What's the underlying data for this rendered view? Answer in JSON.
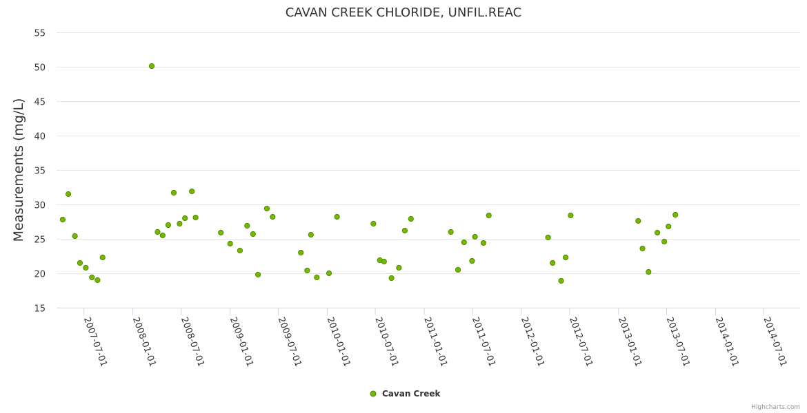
{
  "chart_data": {
    "type": "scatter",
    "title": "CAVAN CREEK CHLORIDE, UNFIL.REAC",
    "ylabel": "Measurements (mg/L)",
    "xlabel": "",
    "ylim": [
      15,
      55
    ],
    "yticks": [
      15,
      20,
      25,
      30,
      35,
      40,
      45,
      50,
      55
    ],
    "xlim": [
      "2007-03-20",
      "2014-11-15"
    ],
    "xticks": [
      "2007-07-01",
      "2008-01-01",
      "2008-07-01",
      "2009-01-01",
      "2009-07-01",
      "2010-01-01",
      "2010-07-01",
      "2011-01-01",
      "2011-07-01",
      "2012-01-01",
      "2012-07-01",
      "2013-01-01",
      "2013-07-01",
      "2014-01-01",
      "2014-07-01"
    ],
    "grid": true,
    "legend": "bottom-center",
    "marker_color": "#76b700",
    "marker_edge": "#4a8a00",
    "series": [
      {
        "name": "Cavan Creek",
        "points": [
          [
            "2007-04-12",
            27.8
          ],
          [
            "2007-05-03",
            31.5
          ],
          [
            "2007-05-28",
            25.4
          ],
          [
            "2007-06-16",
            21.5
          ],
          [
            "2007-07-08",
            20.8
          ],
          [
            "2007-07-31",
            19.4
          ],
          [
            "2007-08-21",
            19.0
          ],
          [
            "2007-09-09",
            22.3
          ],
          [
            "2008-03-12",
            50.1
          ],
          [
            "2008-04-03",
            26.0
          ],
          [
            "2008-04-22",
            25.5
          ],
          [
            "2008-05-13",
            27.0
          ],
          [
            "2008-06-03",
            31.7
          ],
          [
            "2008-06-25",
            27.2
          ],
          [
            "2008-07-15",
            28.0
          ],
          [
            "2008-08-10",
            31.9
          ],
          [
            "2008-08-24",
            28.1
          ],
          [
            "2008-11-27",
            25.9
          ],
          [
            "2009-01-01",
            24.3
          ],
          [
            "2009-02-07",
            23.3
          ],
          [
            "2009-03-06",
            26.9
          ],
          [
            "2009-03-28",
            25.7
          ],
          [
            "2009-04-16",
            19.8
          ],
          [
            "2009-05-19",
            29.4
          ],
          [
            "2009-06-10",
            28.2
          ],
          [
            "2009-09-24",
            23.0
          ],
          [
            "2009-10-18",
            20.4
          ],
          [
            "2009-11-01",
            25.6
          ],
          [
            "2009-11-23",
            19.4
          ],
          [
            "2010-01-08",
            20.0
          ],
          [
            "2010-02-07",
            28.2
          ],
          [
            "2010-06-24",
            27.2
          ],
          [
            "2010-07-18",
            21.9
          ],
          [
            "2010-08-03",
            21.7
          ],
          [
            "2010-08-31",
            19.3
          ],
          [
            "2010-09-28",
            20.8
          ],
          [
            "2010-10-20",
            26.2
          ],
          [
            "2010-11-12",
            27.9
          ],
          [
            "2011-04-11",
            26.0
          ],
          [
            "2011-05-08",
            20.5
          ],
          [
            "2011-05-31",
            24.5
          ],
          [
            "2011-06-30",
            21.8
          ],
          [
            "2011-07-11",
            25.3
          ],
          [
            "2011-08-12",
            24.4
          ],
          [
            "2011-09-01",
            28.4
          ],
          [
            "2012-04-11",
            25.2
          ],
          [
            "2012-04-28",
            21.5
          ],
          [
            "2012-05-30",
            18.9
          ],
          [
            "2012-06-16",
            22.3
          ],
          [
            "2012-07-05",
            28.4
          ],
          [
            "2013-03-16",
            27.6
          ],
          [
            "2013-04-01",
            23.6
          ],
          [
            "2013-04-24",
            20.2
          ],
          [
            "2013-05-27",
            25.9
          ],
          [
            "2013-06-22",
            24.6
          ],
          [
            "2013-07-08",
            26.8
          ],
          [
            "2013-08-03",
            28.5
          ]
        ]
      }
    ]
  },
  "credits": "Highcharts.com"
}
